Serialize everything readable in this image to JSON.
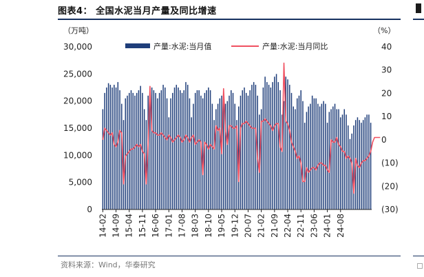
{
  "header": {
    "title": "图表4：  全国水泥当月产量及同比增速"
  },
  "footer": {
    "source": "资料来源：Wind，华泰研究"
  },
  "chart_data": {
    "type": "bar+line",
    "left_axis": {
      "unit_label": "（万吨）",
      "ylim": [
        0,
        30000
      ],
      "ticks": [
        0,
        5000,
        10000,
        15000,
        20000,
        25000,
        30000
      ],
      "tick_labels": [
        "0",
        "5,000",
        "10,000",
        "15,000",
        "20,000",
        "25,000",
        "30,000"
      ]
    },
    "right_axis": {
      "unit_label": "（%）",
      "ylim": [
        -30,
        40
      ],
      "ticks": [
        -30,
        -20,
        -10,
        0,
        10,
        20,
        30,
        40
      ],
      "tick_labels": [
        "(30)",
        "(20)",
        "(10)",
        "0",
        "10",
        "20",
        "30",
        "40"
      ]
    },
    "x_tick_labels": [
      "14-02",
      "14-09",
      "15-04",
      "15-11",
      "16-06",
      "17-01",
      "17-08",
      "18-03",
      "18-10",
      "19-05",
      "19-12",
      "20-07",
      "21-02",
      "21-09",
      "22-04",
      "22-11",
      "23-06",
      "24-01",
      "24-08"
    ],
    "x_tick_period_months": 7,
    "start_month": "2014-02",
    "legend_position": "top",
    "series": [
      {
        "name": "产量:水泥:当月值",
        "type": "bar",
        "axis": "left",
        "color": "#1f3e7a",
        "values": [
          18500,
          21500,
          22500,
          23300,
          23000,
          22500,
          23000,
          22500,
          23500,
          22000,
          19500,
          16500,
          20500,
          21000,
          21500,
          22000,
          21500,
          21000,
          21500,
          22000,
          22800,
          21500,
          18500,
          16500,
          21000,
          22000,
          22500,
          22000,
          21500,
          20500,
          21500,
          22000,
          23000,
          22500,
          20500,
          17000,
          20500,
          21500,
          22500,
          23000,
          22500,
          22000,
          21500,
          22000,
          23500,
          23000,
          20500,
          17000,
          19500,
          21500,
          22000,
          22000,
          21000,
          20500,
          21500,
          22000,
          22500,
          22000,
          19500,
          16500,
          18500,
          19500,
          20500,
          21000,
          20500,
          19500,
          20000,
          21000,
          22000,
          21500,
          19500,
          16500,
          19000,
          21000,
          22000,
          22500,
          21500,
          21000,
          22000,
          23000,
          23500,
          23000,
          21000,
          17500,
          18500,
          22500,
          24500,
          23500,
          23000,
          22500,
          23500,
          24500,
          25000,
          23500,
          22000,
          17500,
          20000,
          24500,
          24000,
          23000,
          21500,
          19000,
          18500,
          20500,
          21000,
          22000,
          20000,
          16000,
          18000,
          19000,
          19500,
          21000,
          20500,
          20500,
          19500,
          19000,
          19500,
          20000,
          19500,
          16000,
          18000,
          18500,
          19000,
          19500,
          18500,
          18500,
          17000,
          17500,
          18500,
          17500,
          15500,
          13000,
          14000,
          15500,
          16500,
          17000,
          16500,
          16000,
          16500,
          17000,
          17500,
          17500,
          16000
        ]
      },
      {
        "name": "产量:水泥:当月同比",
        "type": "line",
        "axis": "right",
        "color": "#f05060",
        "values": [
          0,
          5,
          4,
          3,
          2,
          3,
          -2,
          -3,
          -1,
          4,
          3,
          -19,
          -7,
          -6,
          -5,
          -4,
          -4,
          -3,
          -2,
          -3,
          -2,
          -5,
          -6,
          -19,
          -2,
          23,
          4,
          3,
          3,
          2,
          2,
          3,
          2,
          1,
          0,
          2,
          1,
          -1,
          0,
          1,
          2,
          1,
          -1,
          0,
          2,
          1,
          -1,
          1,
          2,
          -2,
          -1,
          0,
          -1,
          -15,
          -1,
          -2,
          -4,
          -2,
          -3,
          -4,
          6,
          4,
          5,
          -6,
          22,
          4,
          -2,
          6,
          6,
          5,
          5,
          6,
          -18,
          5,
          7,
          7,
          8,
          7,
          6,
          5,
          5,
          5,
          -8,
          -14,
          8,
          8,
          9,
          8,
          7,
          6,
          4,
          6,
          7,
          7,
          -3,
          -5,
          33,
          8,
          7,
          4,
          -1,
          -3,
          -5,
          -8,
          -7,
          -10,
          -18,
          -18,
          -12,
          -14,
          -13,
          -12,
          -12,
          -13,
          -11,
          -10,
          -10,
          -11,
          -11,
          -13,
          -14,
          0,
          -1,
          -1,
          1,
          -2,
          -3,
          -5,
          -5,
          -8,
          -7,
          -8,
          -10,
          -23,
          -8,
          -11,
          -12,
          -10,
          -9,
          -9,
          -8,
          -7,
          -5,
          -1,
          1,
          1,
          1,
          1
        ]
      }
    ]
  }
}
